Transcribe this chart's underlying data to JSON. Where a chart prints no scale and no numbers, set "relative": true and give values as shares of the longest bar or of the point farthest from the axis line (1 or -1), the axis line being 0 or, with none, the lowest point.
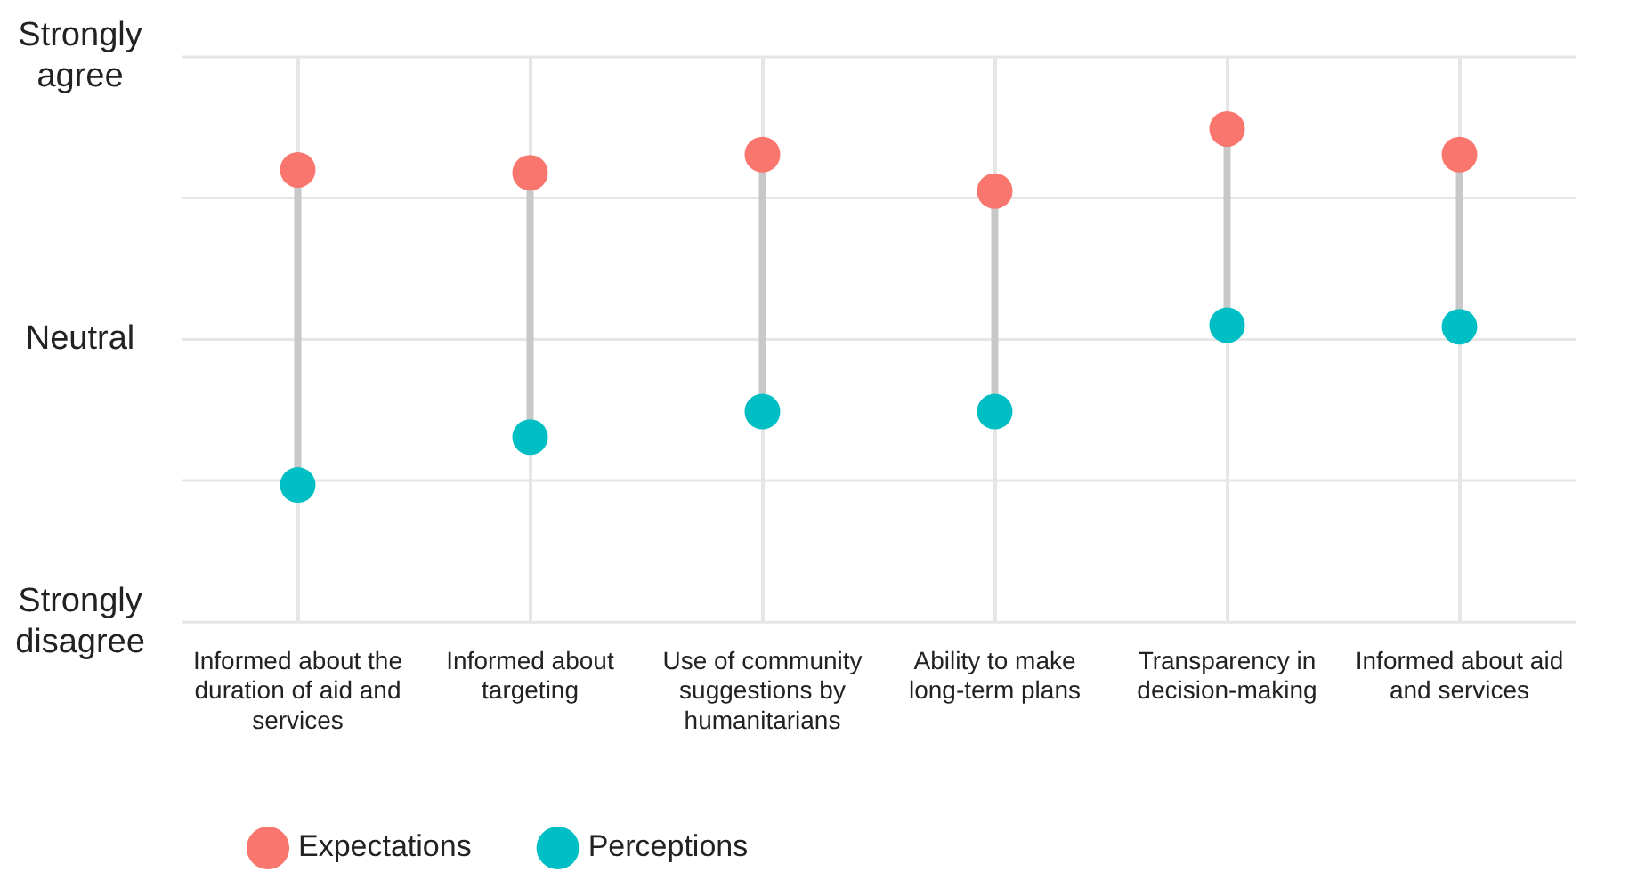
{
  "chart_data": {
    "type": "scatter",
    "relative": true,
    "categories": [
      "Informed about the duration of aid and services",
      "Informed about targeting",
      "Use of community suggestions by humanitarians",
      "Ability to make long-term plans",
      "Transparency in decision-making",
      "Informed about aid and services"
    ],
    "series": [
      {
        "name": "Expectations",
        "color": "#f8766d",
        "values": [
          0.917,
          0.911,
          0.948,
          0.874,
          1,
          0.948
        ]
      },
      {
        "name": "Perceptions",
        "color": "#00bfc4",
        "values": [
          0.278,
          0.375,
          0.427,
          0.427,
          0.602,
          0.599
        ]
      }
    ],
    "ref_lines": [
      {
        "axis": "y",
        "value": 0,
        "label": "Strongly disagree"
      },
      {
        "axis": "y",
        "value": 0.287
      },
      {
        "axis": "y",
        "value": 0.573,
        "label": "Neutral"
      },
      {
        "axis": "y",
        "value": 0.86
      },
      {
        "axis": "y",
        "value": 1.146,
        "label": "Strongly agree"
      }
    ],
    "grid": "x",
    "legend": "bottom left",
    "marker": "circle"
  }
}
